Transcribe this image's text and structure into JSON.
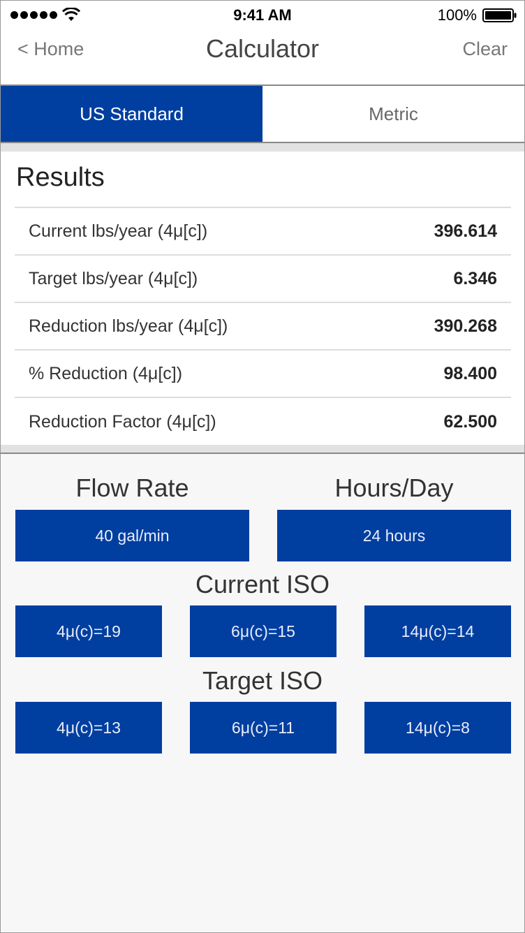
{
  "status_bar": {
    "time": "9:41 AM",
    "battery_percent": "100%",
    "icons": [
      "signal-dots-icon",
      "wifi-icon",
      "battery-icon"
    ]
  },
  "nav": {
    "back_label": "< Home",
    "title": "Calculator",
    "clear_label": "Clear"
  },
  "units": {
    "options": [
      "US Standard",
      "Metric"
    ],
    "selected": "US Standard"
  },
  "results": {
    "title": "Results",
    "rows": [
      {
        "label": "Current lbs/year (4μ[c])",
        "value": "396.614"
      },
      {
        "label": "Target lbs/year (4μ[c])",
        "value": "6.346"
      },
      {
        "label": "Reduction lbs/year (4μ[c])",
        "value": "390.268"
      },
      {
        "label": "% Reduction (4μ[c])",
        "value": "98.400"
      },
      {
        "label": "Reduction Factor (4μ[c])",
        "value": "62.500"
      }
    ]
  },
  "inputs": {
    "flow_rate": {
      "title": "Flow Rate",
      "value": "40 gal/min"
    },
    "hours_day": {
      "title": "Hours/Day",
      "value": "24 hours"
    },
    "current_iso": {
      "title": "Current ISO",
      "values": [
        "4μ(c)=19",
        "6μ(c)=15",
        "14μ(c)=14"
      ]
    },
    "target_iso": {
      "title": "Target ISO",
      "values": [
        "4μ(c)=13",
        "6μ(c)=11",
        "14μ(c)=8"
      ]
    }
  },
  "colors": {
    "accent": "#003ea0",
    "background": "#f7f7f7",
    "separator": "#dddddd"
  }
}
